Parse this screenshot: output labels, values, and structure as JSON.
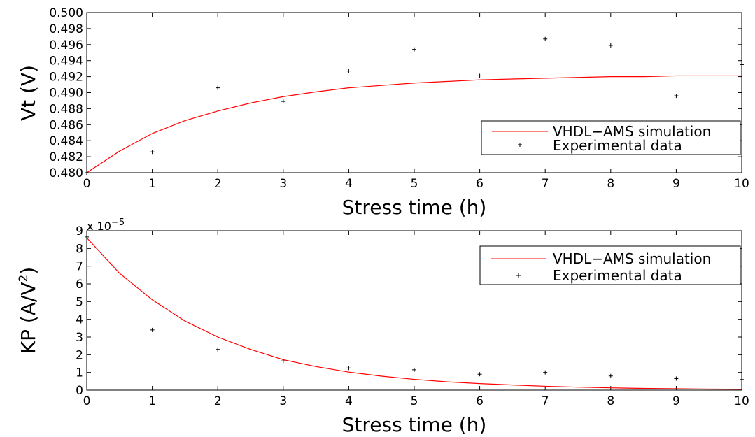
{
  "chart_data": [
    {
      "type": "line",
      "xlabel": "Stress time (h)",
      "ylabel": "Vt (V)",
      "xlim": [
        0,
        10
      ],
      "ylim": [
        0.48,
        0.5
      ],
      "xticks": [
        "0",
        "1",
        "2",
        "3",
        "4",
        "5",
        "6",
        "7",
        "8",
        "9",
        "10"
      ],
      "yticks": [
        "0.480",
        "0.482",
        "0.484",
        "0.486",
        "0.488",
        "0.490",
        "0.492",
        "0.494",
        "0.496",
        "0.498",
        "0.500"
      ],
      "grid": false,
      "legend_position": "right",
      "series": [
        {
          "name": "VHDL−AMS simulation",
          "type": "line",
          "color": "#ff0000",
          "x": [
            0,
            0.5,
            1,
            1.5,
            2,
            2.5,
            3,
            3.5,
            4,
            4.5,
            5,
            5.5,
            6,
            6.5,
            7,
            7.5,
            8,
            8.5,
            9,
            9.5,
            10
          ],
          "y": [
            0.48,
            0.4827,
            0.4849,
            0.4865,
            0.4877,
            0.4887,
            0.4895,
            0.4901,
            0.4906,
            0.4909,
            0.4912,
            0.4914,
            0.4916,
            0.4917,
            0.4918,
            0.4919,
            0.492,
            0.492,
            0.4921,
            0.4921,
            0.4921
          ]
        },
        {
          "name": "Experimental data",
          "type": "scatter",
          "color": "#000000",
          "x": [
            0,
            1,
            2,
            3,
            4,
            5,
            6,
            7,
            8,
            9,
            10
          ],
          "y": [
            0.48,
            0.4826,
            0.4906,
            0.4889,
            0.4927,
            0.4954,
            0.4921,
            0.4967,
            0.4959,
            0.4896,
            0.4935
          ]
        }
      ]
    },
    {
      "type": "line",
      "xlabel": "Stress time (h)",
      "ylabel": "KP (A/V",
      "ylabel_superscript": "2",
      "ylabel_close": ")",
      "y_multiplier": "x 10",
      "y_multiplier_exponent": "−5",
      "xlim": [
        0,
        10
      ],
      "ylim": [
        0,
        9
      ],
      "xticks": [
        "0",
        "1",
        "2",
        "3",
        "4",
        "5",
        "6",
        "7",
        "8",
        "9",
        "10"
      ],
      "yticks": [
        "0",
        "1",
        "2",
        "3",
        "4",
        "5",
        "6",
        "7",
        "8",
        "9"
      ],
      "grid": false,
      "legend_position": "top-right",
      "series": [
        {
          "name": "VHDL−AMS simulation",
          "type": "line",
          "color": "#ff0000",
          "x": [
            0,
            0.5,
            1,
            1.5,
            2,
            2.5,
            3,
            3.5,
            4,
            4.5,
            5,
            5.5,
            6,
            6.5,
            7,
            7.5,
            8,
            8.5,
            9,
            9.5,
            10
          ],
          "y": [
            8.6,
            6.6,
            5.1,
            3.9,
            3.0,
            2.3,
            1.72,
            1.33,
            1.02,
            0.79,
            0.61,
            0.47,
            0.37,
            0.29,
            0.22,
            0.17,
            0.13,
            0.1,
            0.08,
            0.06,
            0.05
          ]
        },
        {
          "name": "Experimental data",
          "type": "scatter",
          "color": "#000000",
          "x": [
            0,
            1,
            2,
            3,
            4,
            5,
            6,
            7,
            8,
            9,
            10
          ],
          "y": [
            8.65,
            3.4,
            2.3,
            1.65,
            1.25,
            1.15,
            0.9,
            1.0,
            0.8,
            0.65,
            0.6
          ]
        }
      ]
    }
  ]
}
